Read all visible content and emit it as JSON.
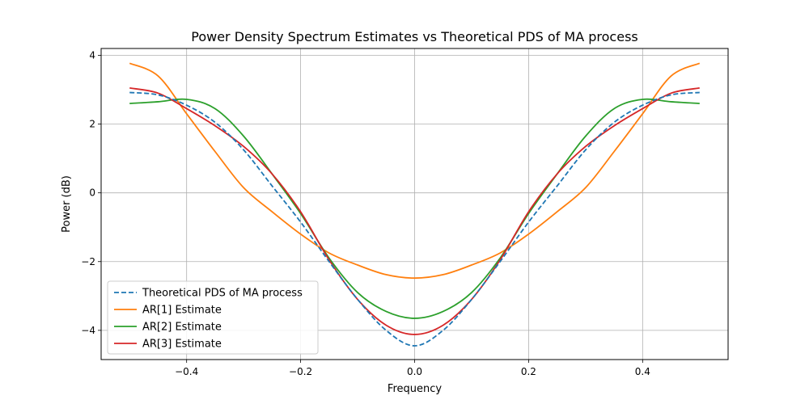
{
  "chart_data": {
    "type": "line",
    "title": "Power Density Spectrum Estimates vs Theoretical PDS of MA process",
    "xlabel": "Frequency",
    "ylabel": "Power (dB)",
    "xlim": [
      -0.55,
      0.55
    ],
    "ylim": [
      -4.85,
      4.2
    ],
    "grid": true,
    "legend_position": "lower-left",
    "xticks": [
      -0.4,
      -0.2,
      0.0,
      0.2,
      0.4
    ],
    "xtick_labels": [
      "−0.4",
      "−0.2",
      "0.0",
      "0.2",
      "0.4"
    ],
    "yticks": [
      -4,
      -2,
      0,
      2,
      4
    ],
    "ytick_labels": [
      "−4",
      "−2",
      "0",
      "2",
      "4"
    ],
    "series": [
      {
        "name": "Theoretical PDS of MA process",
        "color": "#1f77b4",
        "style": "dashed",
        "x": [
          -0.5,
          -0.45,
          -0.4,
          -0.35,
          -0.3,
          -0.25,
          -0.2,
          -0.15,
          -0.1,
          -0.05,
          0.0,
          0.05,
          0.1,
          0.15,
          0.2,
          0.25,
          0.3,
          0.35,
          0.4,
          0.45,
          0.5
        ],
        "y": [
          2.92,
          2.85,
          2.55,
          2.05,
          1.25,
          0.2,
          -0.85,
          -2.0,
          -3.1,
          -4.0,
          -4.45,
          -4.0,
          -3.1,
          -2.0,
          -0.85,
          0.2,
          1.25,
          2.05,
          2.55,
          2.85,
          2.92
        ]
      },
      {
        "name": "AR[1] Estimate",
        "color": "#ff7f0e",
        "style": "solid",
        "x": [
          -0.5,
          -0.45,
          -0.4,
          -0.35,
          -0.3,
          -0.25,
          -0.2,
          -0.15,
          -0.1,
          -0.05,
          0.0,
          0.05,
          0.1,
          0.15,
          0.2,
          0.25,
          0.3,
          0.35,
          0.4,
          0.45,
          0.5
        ],
        "y": [
          3.77,
          3.4,
          2.3,
          1.2,
          0.15,
          -0.55,
          -1.2,
          -1.75,
          -2.1,
          -2.38,
          -2.48,
          -2.38,
          -2.1,
          -1.75,
          -1.2,
          -0.55,
          0.15,
          1.2,
          2.3,
          3.4,
          3.77
        ]
      },
      {
        "name": "AR[2] Estimate",
        "color": "#2ca02c",
        "style": "solid",
        "x": [
          -0.5,
          -0.45,
          -0.4,
          -0.35,
          -0.3,
          -0.25,
          -0.2,
          -0.15,
          -0.1,
          -0.05,
          0.0,
          0.05,
          0.1,
          0.15,
          0.2,
          0.25,
          0.3,
          0.35,
          0.4,
          0.45,
          0.5
        ],
        "y": [
          2.6,
          2.65,
          2.72,
          2.45,
          1.65,
          0.55,
          -0.6,
          -1.9,
          -2.9,
          -3.45,
          -3.65,
          -3.45,
          -2.9,
          -1.9,
          -0.6,
          0.55,
          1.65,
          2.45,
          2.72,
          2.65,
          2.6
        ]
      },
      {
        "name": "AR[3] Estimate",
        "color": "#d62728",
        "style": "solid",
        "x": [
          -0.5,
          -0.45,
          -0.4,
          -0.35,
          -0.3,
          -0.25,
          -0.2,
          -0.15,
          -0.1,
          -0.05,
          0.0,
          0.05,
          0.1,
          0.15,
          0.2,
          0.25,
          0.3,
          0.35,
          0.4,
          0.45,
          0.5
        ],
        "y": [
          3.05,
          2.9,
          2.45,
          1.95,
          1.35,
          0.55,
          -0.55,
          -1.95,
          -3.1,
          -3.85,
          -4.12,
          -3.85,
          -3.1,
          -1.95,
          -0.55,
          0.55,
          1.35,
          1.95,
          2.45,
          2.9,
          3.05
        ]
      }
    ]
  }
}
